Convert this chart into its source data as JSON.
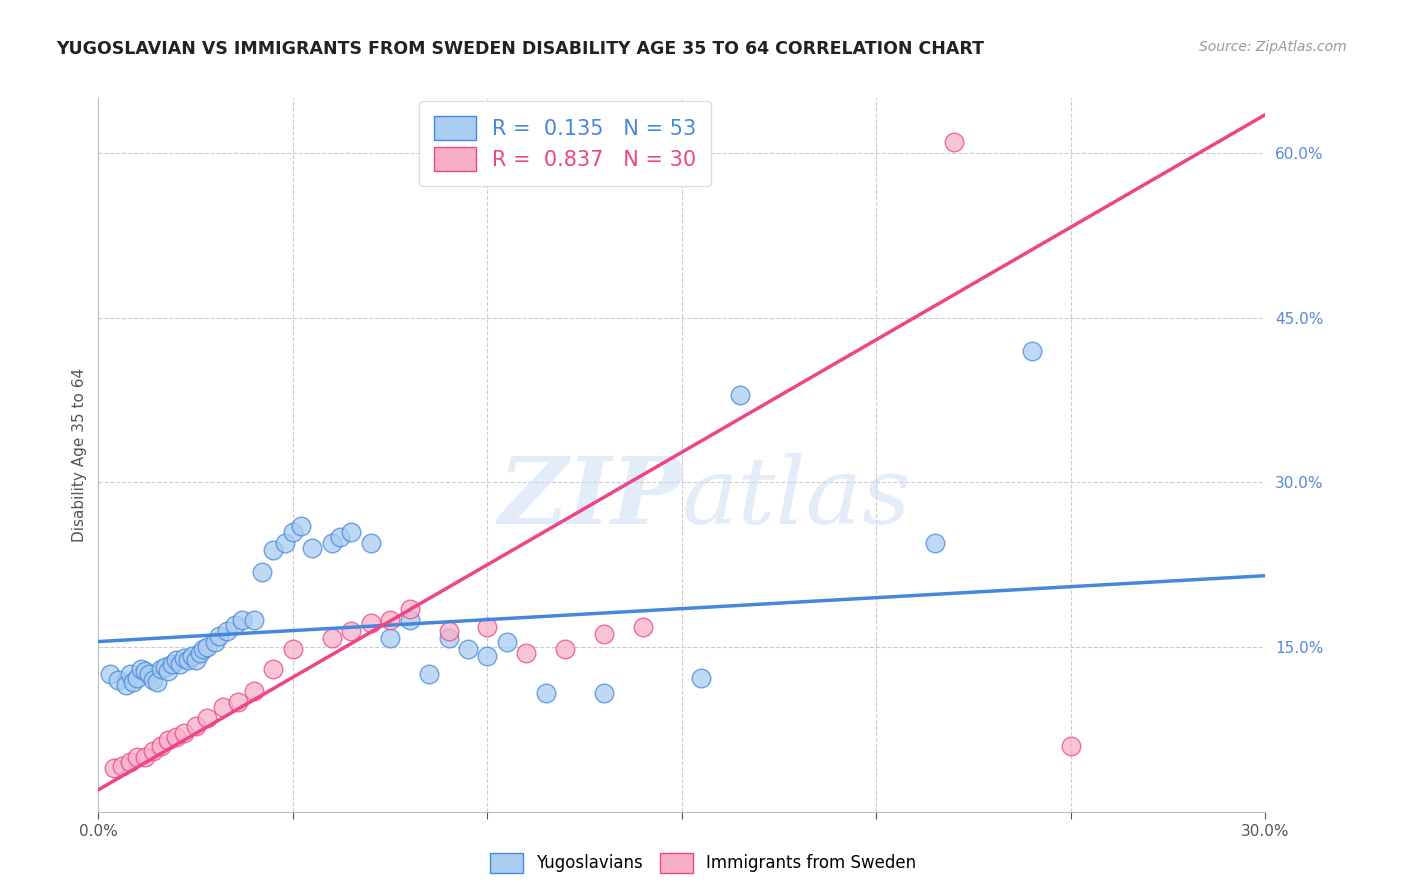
{
  "title": "YUGOSLAVIAN VS IMMIGRANTS FROM SWEDEN DISABILITY AGE 35 TO 64 CORRELATION CHART",
  "source": "Source: ZipAtlas.com",
  "ylabel": "Disability Age 35 to 64",
  "xlim": [
    0.0,
    0.3
  ],
  "ylim": [
    0.0,
    0.65
  ],
  "x_ticks": [
    0.0,
    0.05,
    0.1,
    0.15,
    0.2,
    0.25,
    0.3
  ],
  "x_tick_labels": [
    "0.0%",
    "",
    "",
    "",
    "",
    "",
    "30.0%"
  ],
  "y_ticks_right": [
    0.15,
    0.3,
    0.45,
    0.6
  ],
  "y_tick_labels_right": [
    "15.0%",
    "30.0%",
    "45.0%",
    "60.0%"
  ],
  "watermark": "ZIPatlas",
  "series1_color": "#aaccf0",
  "series2_color": "#f8b0c8",
  "line1_color": "#4488dd",
  "line2_color": "#ee4488",
  "background_color": "#ffffff",
  "grid_color": "#cccccc",
  "yuge_x": [
    0.003,
    0.005,
    0.007,
    0.008,
    0.009,
    0.01,
    0.011,
    0.012,
    0.013,
    0.014,
    0.015,
    0.016,
    0.017,
    0.018,
    0.019,
    0.02,
    0.021,
    0.022,
    0.023,
    0.024,
    0.025,
    0.026,
    0.027,
    0.028,
    0.03,
    0.031,
    0.033,
    0.035,
    0.037,
    0.04,
    0.042,
    0.045,
    0.048,
    0.05,
    0.052,
    0.055,
    0.06,
    0.062,
    0.065,
    0.07,
    0.075,
    0.08,
    0.085,
    0.09,
    0.095,
    0.1,
    0.105,
    0.115,
    0.13,
    0.155,
    0.165,
    0.215,
    0.24
  ],
  "yuge_y": [
    0.125,
    0.12,
    0.115,
    0.125,
    0.118,
    0.122,
    0.13,
    0.128,
    0.125,
    0.12,
    0.118,
    0.13,
    0.132,
    0.128,
    0.135,
    0.138,
    0.135,
    0.14,
    0.138,
    0.142,
    0.138,
    0.145,
    0.148,
    0.15,
    0.155,
    0.16,
    0.165,
    0.17,
    0.175,
    0.175,
    0.218,
    0.238,
    0.245,
    0.255,
    0.26,
    0.24,
    0.245,
    0.25,
    0.255,
    0.245,
    0.158,
    0.175,
    0.125,
    0.158,
    0.148,
    0.142,
    0.155,
    0.108,
    0.108,
    0.122,
    0.38,
    0.245,
    0.42
  ],
  "swe_x": [
    0.004,
    0.006,
    0.008,
    0.01,
    0.012,
    0.014,
    0.016,
    0.018,
    0.02,
    0.022,
    0.025,
    0.028,
    0.032,
    0.036,
    0.04,
    0.045,
    0.05,
    0.06,
    0.065,
    0.07,
    0.075,
    0.08,
    0.09,
    0.1,
    0.11,
    0.12,
    0.13,
    0.14,
    0.22,
    0.25
  ],
  "swe_y": [
    0.04,
    0.042,
    0.045,
    0.05,
    0.05,
    0.055,
    0.06,
    0.065,
    0.068,
    0.072,
    0.078,
    0.085,
    0.095,
    0.1,
    0.11,
    0.13,
    0.148,
    0.158,
    0.165,
    0.172,
    0.175,
    0.185,
    0.165,
    0.168,
    0.145,
    0.148,
    0.162,
    0.168,
    0.61,
    0.06
  ]
}
